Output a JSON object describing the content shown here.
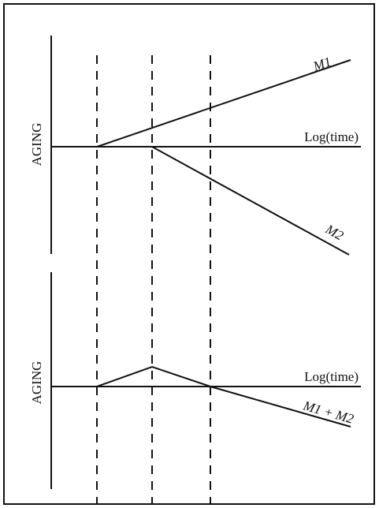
{
  "top_panel": {
    "y_label": "AGING",
    "x_label": "Log(time)",
    "curves": [
      "M1",
      "M2"
    ]
  },
  "bottom_panel": {
    "y_label": "AGING",
    "x_label": "Log(time)",
    "curve": "M1 + M2"
  }
}
